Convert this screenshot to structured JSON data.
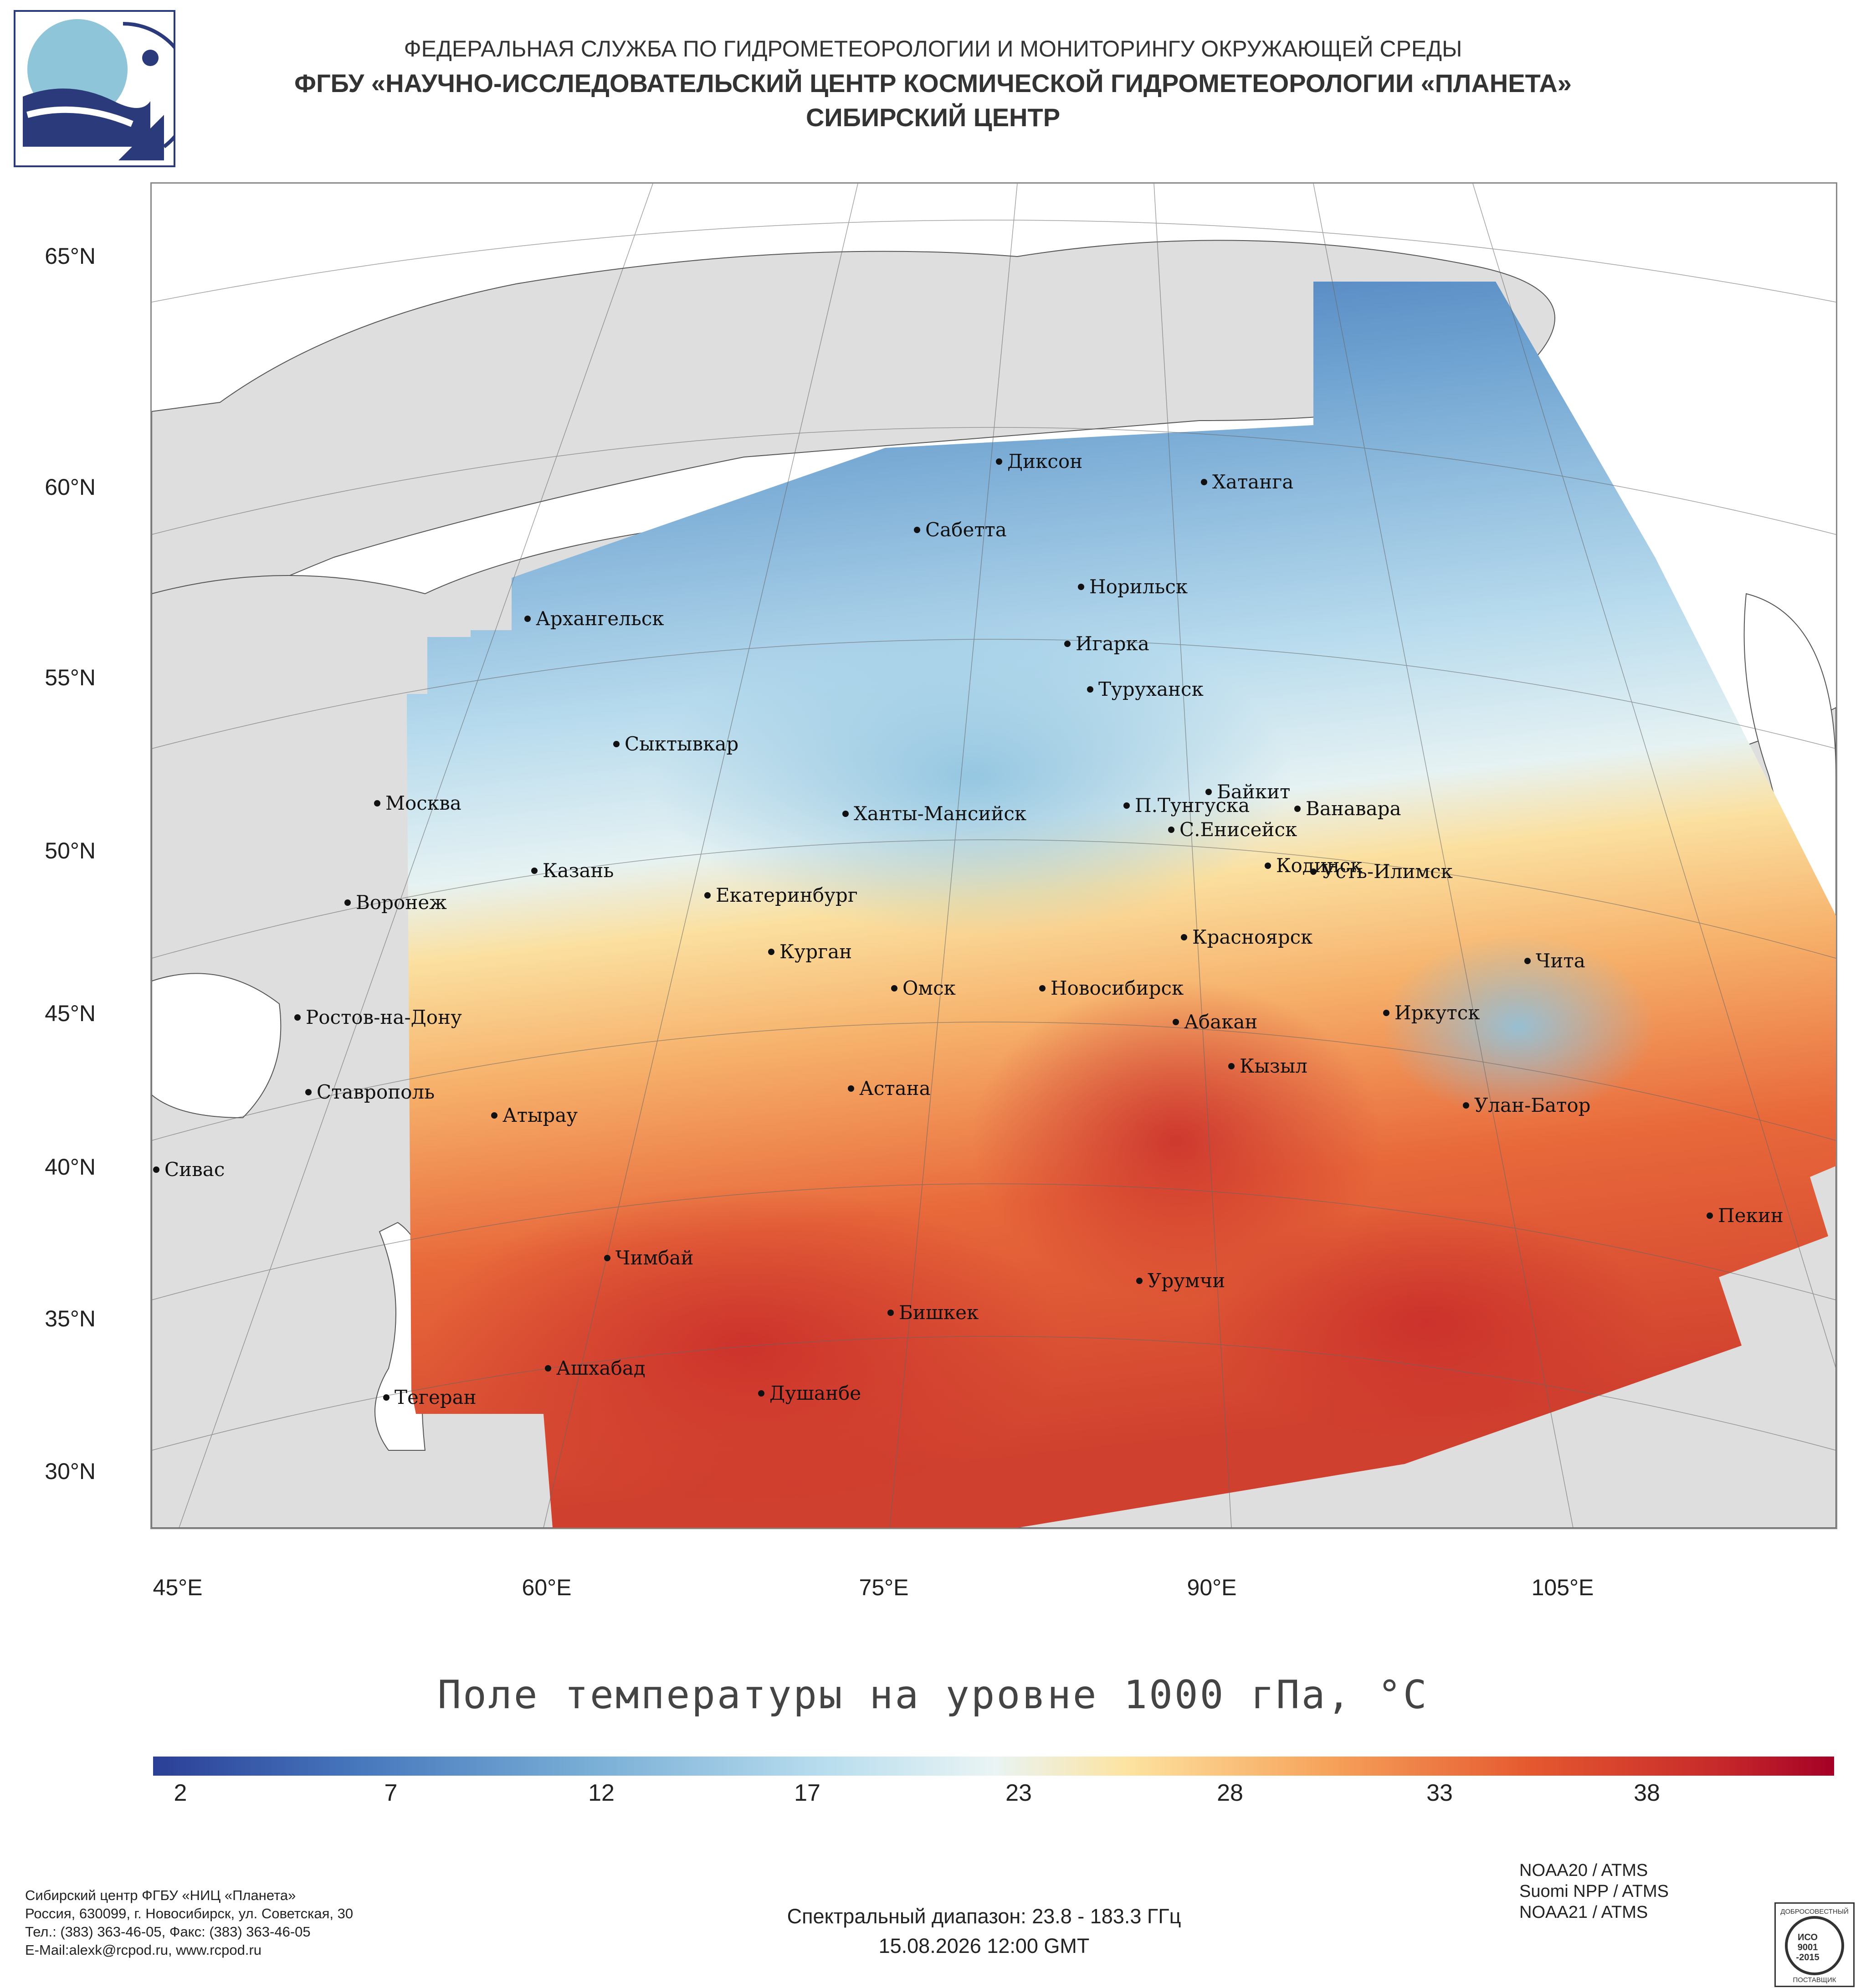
{
  "header": {
    "line1": "ФЕДЕРАЛЬНАЯ СЛУЖБА ПО ГИДРОМЕТЕОРОЛОГИИ И МОНИТОРИНГУ ОКРУЖАЮЩЕЙ СРЕДЫ",
    "line2": "ФГБУ «НАУЧНО-ИССЛЕДОВАТЕЛЬСКИЙ ЦЕНТР КОСМИЧЕСКОЙ ГИДРОМЕТЕОРОЛОГИИ «ПЛАНЕТА»",
    "line3": "СИБИРСКИЙ ЦЕНТР"
  },
  "map": {
    "latitude_labels": [
      "65°N",
      "60°N",
      "55°N",
      "50°N",
      "45°N",
      "40°N",
      "35°N",
      "30°N"
    ],
    "longitude_labels": [
      "45°E",
      "60°E",
      "75°E",
      "90°E",
      "105°E"
    ],
    "cities": [
      "Диксон",
      "Хатанга",
      "Сабетта",
      "Архангельск",
      "Норильск",
      "Игарка",
      "Туруханск",
      "Сыктывкар",
      "Байкит",
      "Москва",
      "П.Тунгуска",
      "Ванавара",
      "Ханты-Мансийск",
      "С.Енисейск",
      "Казань",
      "Кодинск",
      "Усть-Илимск",
      "Воронеж",
      "Екатеринбург",
      "Курган",
      "Красноярск",
      "Чита",
      "Омск",
      "Новосибирск",
      "Ростов-на-Дону",
      "Иркутск",
      "Абакан",
      "Кызыл",
      "Ставрополь",
      "Астана",
      "Улан-Батор",
      "Атырау",
      "Сивас",
      "Пекин",
      "Чимбай",
      "Урумчи",
      "Бишкек",
      "Ашхабад",
      "Тегеран",
      "Душанбе"
    ],
    "land_color": "#dedede",
    "sea_color": "#ffffff"
  },
  "legend": {
    "title": "Поле температуры на уровне 1000 гПа, °C",
    "ticks": [
      "2",
      "7",
      "12",
      "17",
      "23",
      "28",
      "33",
      "38"
    ],
    "range_min": 1,
    "range_max": 41,
    "colors": [
      "#2b3f97",
      "#4676bc",
      "#79aed6",
      "#b8ddee",
      "#e9f4f4",
      "#fde3a0",
      "#f6a25a",
      "#e5582f",
      "#c72a2a",
      "#a50026"
    ]
  },
  "footer": {
    "org_line1": "Сибирский центр ФГБУ «НИЦ «Планета»",
    "org_line2": "Россия, 630099, г. Новосибирск, ул. Советская, 30",
    "org_line3": "Тел.: (383) 363-46-05, Факс: (383) 363-46-05",
    "org_line4": "E-Mail:alexk@rcpod.ru, www.rcpod.ru",
    "spectral": "Спектральный диапазон: 23.8 - 183.3 ГГц",
    "datetime": "15.08.2026 12:00 GMT",
    "sensors": [
      "NOAA20 / ATMS",
      "Suomi NPP / ATMS",
      "NOAA21 / ATMS"
    ],
    "cert_top": "ДОБРОСОВЕСТНЫЙ",
    "cert_mid1": "ИСО",
    "cert_mid2": "9001",
    "cert_mid3": "-2015",
    "cert_bottom": "ПОСТАВЩИК"
  }
}
